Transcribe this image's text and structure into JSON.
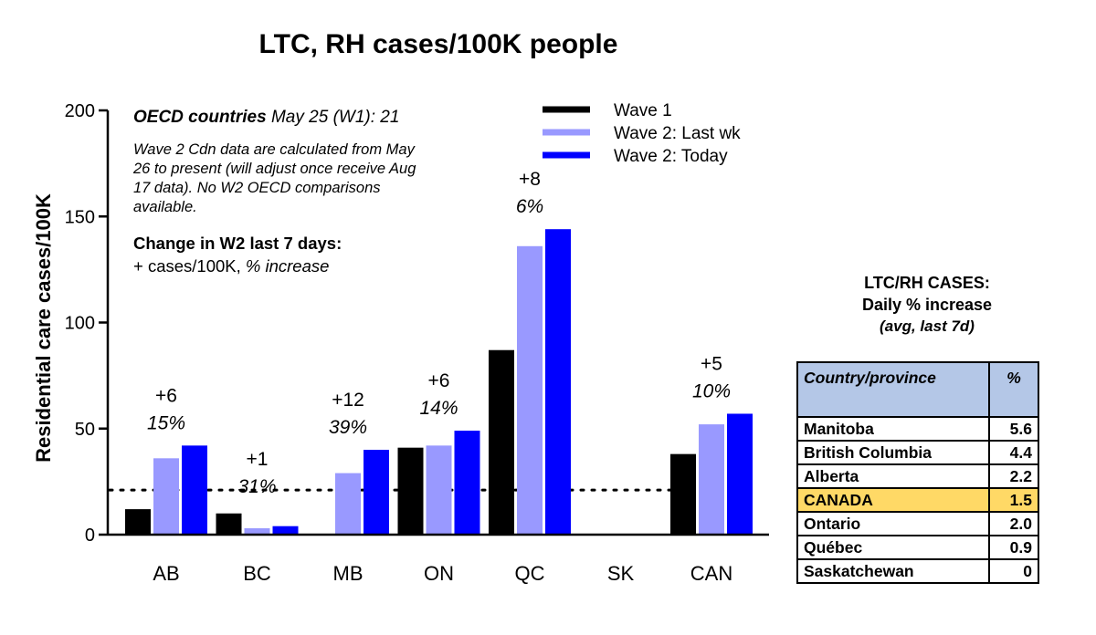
{
  "title": "LTC, RH cases/100K people",
  "notes": {
    "oecd_label": "OECD countries",
    "oecd_rest": " May 25 (W1): 21",
    "wave2_note": "Wave 2 Cdn data are calculated from May 26 to present (will adjust once receive Aug 17 data). No W2 OECD comparisons available.",
    "change_title": "Change in W2 last 7 days:",
    "change_sub_plain": "+ cases/100K, ",
    "change_sub_italic": "% increase"
  },
  "chart_data": {
    "type": "bar",
    "title": "LTC, RH cases/100K people",
    "xlabel": "",
    "ylabel": "Residential care cases/100K",
    "ylim": [
      0,
      200
    ],
    "yticks": [
      0,
      50,
      100,
      150,
      200
    ],
    "categories": [
      "AB",
      "BC",
      "MB",
      "ON",
      "QC",
      "SK",
      "CAN"
    ],
    "series": [
      {
        "name": "Wave 1",
        "color": "#000000",
        "values": [
          12,
          10,
          0,
          41,
          87,
          0,
          38
        ]
      },
      {
        "name": "Wave 2: Last wk",
        "color": "#9999ff",
        "values": [
          36,
          3,
          29,
          42,
          136,
          0,
          52
        ]
      },
      {
        "name": "Wave 2: Today",
        "color": "#0000ff",
        "values": [
          42,
          4,
          40,
          49,
          144,
          0,
          57
        ]
      }
    ],
    "reference_line": {
      "value": 21,
      "style": "dotted"
    },
    "change_labels": [
      {
        "category": "AB",
        "plus": "+6",
        "pct": "15%"
      },
      {
        "category": "BC",
        "plus": "+1",
        "pct": "31%"
      },
      {
        "category": "MB",
        "plus": "+12",
        "pct": "39%"
      },
      {
        "category": "ON",
        "plus": "+6",
        "pct": "14%"
      },
      {
        "category": "QC",
        "plus": "+8",
        "pct": "6%"
      },
      {
        "category": "CAN",
        "plus": "+5",
        "pct": "10%"
      }
    ],
    "legend_position": "top-right"
  },
  "side_table": {
    "title_line1": "LTC/RH CASES:",
    "title_line2": "Daily % increase",
    "subtitle": "(avg, last 7d)",
    "header_name": "Country/province",
    "header_pct": "%",
    "highlight_color": "#ffd966",
    "header_color": "#b4c7e7",
    "rows": [
      {
        "name": "Manitoba",
        "value": "5.6"
      },
      {
        "name": "British Columbia",
        "value": "4.4"
      },
      {
        "name": "Alberta",
        "value": "2.2"
      },
      {
        "name": "CANADA",
        "value": "1.5"
      },
      {
        "name": "Ontario",
        "value": "2.0"
      },
      {
        "name": "Québec",
        "value": "0.9"
      },
      {
        "name": "Saskatchewan",
        "value": "0"
      }
    ]
  }
}
